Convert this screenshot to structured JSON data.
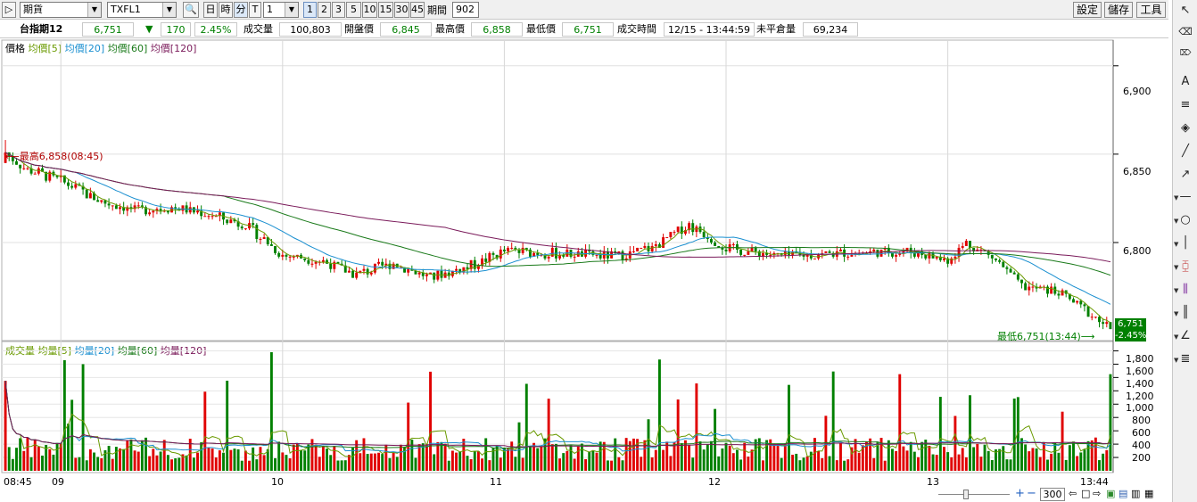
{
  "toolbar": {
    "category": "期貨",
    "symbol": "TXFL1",
    "units": [
      "日",
      "時",
      "分",
      "T"
    ],
    "interval": "1",
    "periods": [
      "1",
      "2",
      "3",
      "5",
      "10",
      "15",
      "30",
      "45"
    ],
    "active_period": "1",
    "period_label": "期間",
    "period_value": "902",
    "settings_label": "設定",
    "save_label": "儲存",
    "tools_label": "工具"
  },
  "quote": {
    "name": "台指期12",
    "price": "6,751",
    "change_arrow": "▼",
    "change": "170",
    "change_pct": "2.45%",
    "volume_label": "成交量",
    "volume": "100,803",
    "open_label": "開盤價",
    "open": "6,845",
    "high_label": "最高價",
    "high": "6,858",
    "low_label": "最低價",
    "low": "6,751",
    "time_label": "成交時間",
    "time": "12/15 - 13:44:59",
    "oi_label": "未平倉量",
    "oi": "69,234",
    "down_color": "#008000"
  },
  "price_panel": {
    "legend": [
      {
        "label": "價格",
        "color": "#000000"
      },
      {
        "label": "均價[5]",
        "color": "#6a9a00"
      },
      {
        "label": "均價[20]",
        "color": "#1a8fd0"
      },
      {
        "label": "均價[60]",
        "color": "#1a7a1a"
      },
      {
        "label": "均價[120]",
        "color": "#7a1a5a"
      }
    ],
    "high_marker": "最高6,858(08:45)",
    "low_marker": "最低6,751(13:44)",
    "last_price_tag": "6,751",
    "last_pct_tag": "-2.45%"
  },
  "volume_panel": {
    "legend": [
      {
        "label": "成交量",
        "color": "#6a9a00"
      },
      {
        "label": "均量[5]",
        "color": "#6a9a00"
      },
      {
        "label": "均量[20]",
        "color": "#1a8fd0"
      },
      {
        "label": "均量[60]",
        "color": "#1a7a1a"
      },
      {
        "label": "均量[120]",
        "color": "#7a1a5a"
      }
    ]
  },
  "chart_data": {
    "type": "candlestick",
    "price_axis_ticks": [
      6800,
      6850,
      6900
    ],
    "price_axis_labels": [
      "6,800",
      "6,850",
      "6,900"
    ],
    "price_ylim": [
      6745,
      6912
    ],
    "volume_axis_ticks": [
      200,
      400,
      600,
      800,
      1000,
      1200,
      1400,
      1600,
      1800
    ],
    "volume_axis_labels": [
      "200",
      "400",
      "600",
      "800",
      "1,000",
      "1,200",
      "1,400",
      "1,600",
      "1,800"
    ],
    "volume_ylim": [
      0,
      1900
    ],
    "time_labels": [
      "08:45",
      "09",
      "10",
      "11",
      "12",
      "13",
      "13:44"
    ],
    "bars_count": 300,
    "open": 6845,
    "high": 6858,
    "low": 6751,
    "close": 6751,
    "up_color": "#e00000",
    "down_color": "#008000"
  },
  "bottom": {
    "zoom_value": "300"
  }
}
